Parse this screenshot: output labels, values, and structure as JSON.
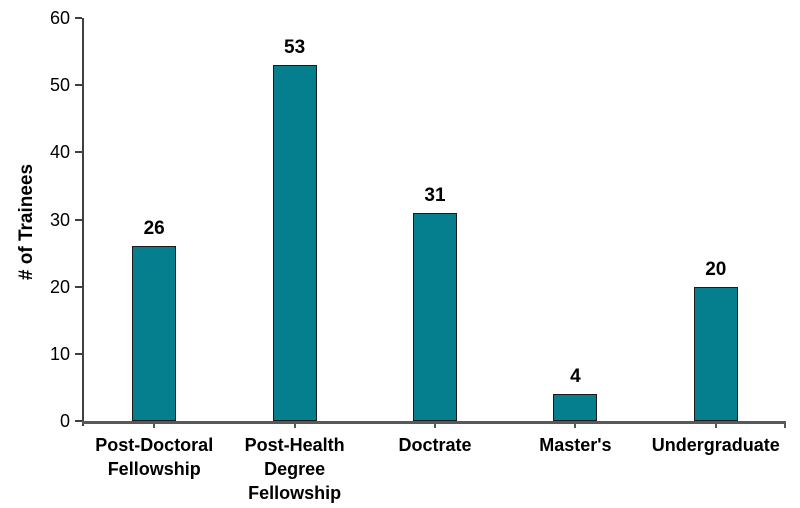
{
  "chart_data": {
    "type": "bar",
    "title": "",
    "xlabel": "",
    "ylabel": "# of Trainees",
    "categories": [
      "Post-Doctoral\nFellowship",
      "Post-Health\nDegree\nFellowship",
      "Doctrate",
      "Master's",
      "Undergraduate"
    ],
    "values": [
      26,
      53,
      31,
      4,
      20
    ],
    "ylim": [
      0,
      60
    ],
    "yticks": [
      0,
      10,
      20,
      30,
      40,
      50,
      60
    ],
    "grid": false,
    "legend": "none",
    "data_labels_shown": true,
    "colors": {
      "bar_fill": "#057E8D",
      "bar_border": "#1a1a1a",
      "x_axis_line": "#595959",
      "y_axis_line": "#404040",
      "text": "#000000",
      "background": "#ffffff"
    }
  }
}
